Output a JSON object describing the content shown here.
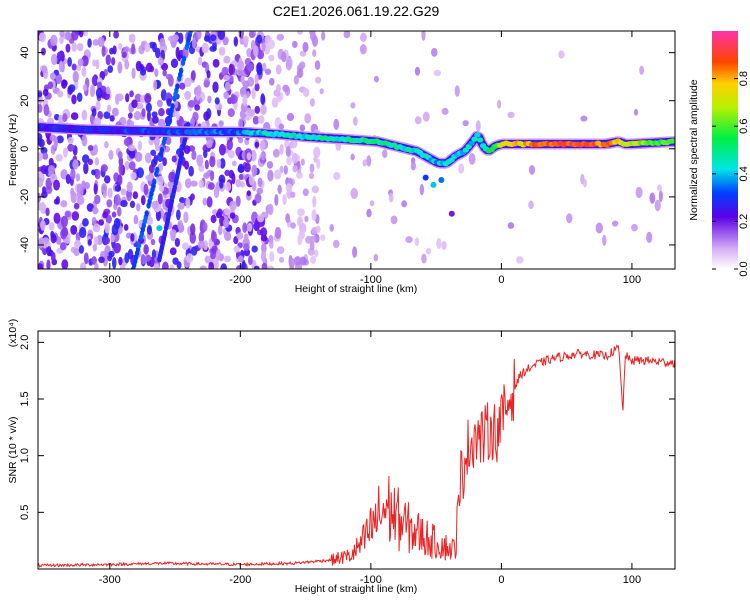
{
  "title": "C2E1.2026.061.19.22.G29",
  "chart_data": [
    {
      "type": "heatmap",
      "name": "spectrogram",
      "xlabel": "Height of straight line (km)",
      "ylabel": "Frequency (Hz)",
      "xlim": [
        -355,
        133
      ],
      "ylim": [
        -50,
        49
      ],
      "xticks": [
        -300,
        -200,
        -100,
        0,
        100
      ],
      "xtick_labels": [
        "-300",
        "-200",
        "-100",
        "0",
        "100"
      ],
      "yticks": [
        -40,
        -20,
        0,
        20,
        40
      ],
      "ytick_labels": [
        "-40",
        "-20",
        "0",
        "20",
        "40"
      ],
      "colorbar": {
        "label": "Normalized spectral amplitude",
        "range": [
          0,
          1
        ],
        "ticks": [
          0,
          0.2,
          0.4,
          0.6,
          0.8
        ],
        "tick_labels": [
          "0.0",
          "0.2",
          "0.4",
          "0.6",
          "0.8"
        ]
      },
      "ridge": {
        "x": [
          -355,
          -320,
          -280,
          -240,
          -200,
          -170,
          -150,
          -120,
          -95,
          -80,
          -65,
          -55,
          -48,
          -42,
          -35,
          -28,
          -22,
          -18,
          -14,
          -10,
          -5,
          0,
          20,
          50,
          80,
          90,
          95,
          100,
          133
        ],
        "y": [
          9,
          8,
          7.5,
          7,
          7,
          6,
          5,
          4,
          3,
          1,
          -1,
          -4,
          -6,
          -6,
          -3,
          -1,
          3,
          6,
          1,
          -1,
          1,
          2,
          2,
          2,
          2,
          3,
          2,
          2,
          3
        ]
      },
      "ridge_amplitude": {
        "x": [
          -355,
          -250,
          -200,
          -170,
          -130,
          -100,
          -70,
          -50,
          -30,
          -15,
          0,
          30,
          60,
          85,
          95,
          133
        ],
        "y": [
          0.25,
          0.3,
          0.35,
          0.45,
          0.45,
          0.5,
          0.45,
          0.4,
          0.4,
          0.45,
          0.7,
          0.85,
          0.9,
          0.8,
          0.7,
          0.55
        ]
      },
      "tilted_streaks": [
        {
          "x": [
            -282,
            -238
          ],
          "y": [
            -50,
            49
          ],
          "strength": 0.3
        },
        {
          "x": [
            -262,
            -240
          ],
          "y": [
            -46,
            10
          ],
          "strength": 0.25
        }
      ]
    },
    {
      "type": "line",
      "name": "snr",
      "xlabel": "Height of straight line (km)",
      "ylabel": "SNR (10 * v/v)",
      "scale_label": "(x10⁴)",
      "xlim": [
        -355,
        133
      ],
      "ylim": [
        0,
        2.1
      ],
      "xticks": [
        -300,
        -200,
        -100,
        0,
        100
      ],
      "xtick_labels": [
        "-300",
        "-200",
        "-100",
        "0",
        "100"
      ],
      "yticks": [
        0.5,
        1.0,
        1.5,
        2.0
      ],
      "ytick_labels": [
        "0.5",
        "1.0",
        "1.5",
        "2.0"
      ],
      "series": [
        {
          "name": "SNR",
          "color": "#ee2222",
          "x": [
            -355,
            -300,
            -260,
            -200,
            -160,
            -130,
            -115,
            -105,
            -95,
            -88,
            -82,
            -76,
            -70,
            -64,
            -58,
            -52,
            -46,
            -40,
            -36,
            -32,
            -28,
            -24,
            -20,
            -16,
            -12,
            -8,
            -4,
            0,
            8,
            15,
            25,
            40,
            60,
            80,
            90,
            93,
            95,
            97,
            100,
            110,
            120,
            133
          ],
          "y": [
            0.03,
            0.04,
            0.05,
            0.04,
            0.05,
            0.08,
            0.12,
            0.25,
            0.45,
            0.55,
            0.48,
            0.4,
            0.35,
            0.32,
            0.28,
            0.24,
            0.22,
            0.18,
            0.17,
            0.55,
            1.02,
            1.1,
            1.2,
            1.15,
            1.18,
            1.25,
            1.2,
            1.3,
            1.55,
            1.72,
            1.8,
            1.86,
            1.9,
            1.88,
            1.95,
            1.37,
            1.9,
            1.85,
            1.84,
            1.84,
            1.83,
            1.82
          ]
        }
      ]
    }
  ]
}
